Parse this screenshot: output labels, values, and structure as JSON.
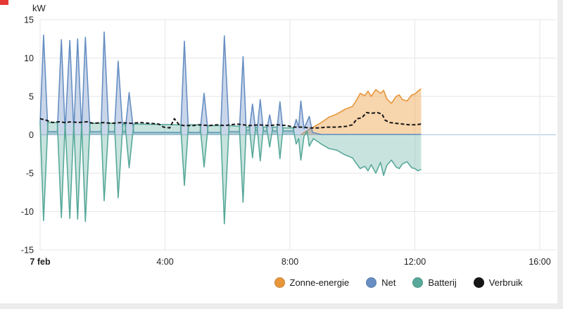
{
  "page": {
    "background_color": "#ececec",
    "card_color": "#ffffff",
    "corner_accent_color": "#e53935"
  },
  "chart_data": {
    "type": "area",
    "title": "",
    "ylabel": "kW",
    "xlabel": "",
    "x_unit": "hours_since_midnight",
    "date_label": "7 feb",
    "xlim": [
      0,
      16.52
    ],
    "ylim": [
      -15,
      15
    ],
    "yticks": [
      15,
      10,
      5,
      0,
      -5,
      -10,
      -15
    ],
    "xticks": [
      {
        "t": 0,
        "label": "7 feb",
        "bold": true
      },
      {
        "t": 4,
        "label": "4:00"
      },
      {
        "t": 8,
        "label": "8:00"
      },
      {
        "t": 12,
        "label": "12:00"
      },
      {
        "t": 16,
        "label": "16:00"
      }
    ],
    "grid": true,
    "legend_position": "bottom",
    "colors": {
      "grid_line": "#e6e6e6",
      "zero_line": "#a9c4dc",
      "axis_text": "#1f1f1f"
    },
    "series": [
      {
        "name": "Zonne-energie",
        "style": "area",
        "color": "#e8963c",
        "fill": "rgba(238,162,73,0.45)",
        "points": [
          [
            8.35,
            0
          ],
          [
            8.5,
            0.4
          ],
          [
            8.62,
            0.7
          ],
          [
            8.75,
            1.0
          ],
          [
            9.0,
            1.6
          ],
          [
            9.25,
            2.3
          ],
          [
            9.5,
            2.7
          ],
          [
            9.75,
            3.3
          ],
          [
            10.0,
            3.7
          ],
          [
            10.1,
            4.3
          ],
          [
            10.25,
            5.4
          ],
          [
            10.4,
            5.1
          ],
          [
            10.5,
            5.7
          ],
          [
            10.6,
            5.0
          ],
          [
            10.75,
            5.9
          ],
          [
            10.9,
            5.4
          ],
          [
            11.0,
            5.8
          ],
          [
            11.1,
            4.7
          ],
          [
            11.25,
            4.1
          ],
          [
            11.4,
            5.0
          ],
          [
            11.5,
            5.2
          ],
          [
            11.6,
            4.6
          ],
          [
            11.75,
            4.4
          ],
          [
            11.9,
            5.2
          ],
          [
            12.0,
            5.3
          ],
          [
            12.1,
            5.7
          ],
          [
            12.2,
            6.0
          ]
        ]
      },
      {
        "name": "Net",
        "style": "area",
        "color": "#678fc3",
        "fill": "rgba(113,148,199,0.38)",
        "points": [
          [
            0,
            1.5
          ],
          [
            0.11,
            13.0
          ],
          [
            0.25,
            0.4
          ],
          [
            0.55,
            0.4
          ],
          [
            0.68,
            12.4
          ],
          [
            0.8,
            0.5
          ],
          [
            0.95,
            12.3
          ],
          [
            1.08,
            0.5
          ],
          [
            1.2,
            12.5
          ],
          [
            1.33,
            0.5
          ],
          [
            1.45,
            12.7
          ],
          [
            1.6,
            0.4
          ],
          [
            1.95,
            0.4
          ],
          [
            2.05,
            13.4
          ],
          [
            2.2,
            0.4
          ],
          [
            2.38,
            0.4
          ],
          [
            2.5,
            9.6
          ],
          [
            2.65,
            0.4
          ],
          [
            2.72,
            0.35
          ],
          [
            2.85,
            5.5
          ],
          [
            3.0,
            0.3
          ],
          [
            4.5,
            0.3
          ],
          [
            4.62,
            12.2
          ],
          [
            4.75,
            0.3
          ],
          [
            5.12,
            0.3
          ],
          [
            5.25,
            5.4
          ],
          [
            5.38,
            0.3
          ],
          [
            5.78,
            0.3
          ],
          [
            5.9,
            12.9
          ],
          [
            6.05,
            0.4
          ],
          [
            6.38,
            0.4
          ],
          [
            6.5,
            10.2
          ],
          [
            6.6,
            0.6
          ],
          [
            6.7,
            0.6
          ],
          [
            6.8,
            4.0
          ],
          [
            6.9,
            0.6
          ],
          [
            6.95,
            0.6
          ],
          [
            7.05,
            4.6
          ],
          [
            7.15,
            0.5
          ],
          [
            7.25,
            0.5
          ],
          [
            7.35,
            2.6
          ],
          [
            7.45,
            0.5
          ],
          [
            7.58,
            0.5
          ],
          [
            7.68,
            4.3
          ],
          [
            7.78,
            0.5
          ],
          [
            8.1,
            0.5
          ],
          [
            8.2,
            2.0
          ],
          [
            8.28,
            1.0
          ],
          [
            8.35,
            4.4
          ],
          [
            8.45,
            0.8
          ],
          [
            8.62,
            2.4
          ],
          [
            8.72,
            0.3
          ],
          [
            9.0,
            0.05
          ],
          [
            12.2,
            0.05
          ]
        ]
      },
      {
        "name": "Batterij",
        "style": "area",
        "color": "#58a99a",
        "fill": "rgba(97,175,160,0.35)",
        "points": [
          [
            0,
            1.6
          ],
          [
            0.11,
            -11.2
          ],
          [
            0.25,
            1.6
          ],
          [
            0.55,
            1.6
          ],
          [
            0.68,
            -10.8
          ],
          [
            0.8,
            1.5
          ],
          [
            0.95,
            -10.9
          ],
          [
            1.08,
            1.5
          ],
          [
            1.2,
            -11.0
          ],
          [
            1.33,
            1.5
          ],
          [
            1.45,
            -11.3
          ],
          [
            1.6,
            1.5
          ],
          [
            1.95,
            1.5
          ],
          [
            2.05,
            -8.6
          ],
          [
            2.2,
            1.5
          ],
          [
            2.38,
            1.5
          ],
          [
            2.5,
            -8.2
          ],
          [
            2.65,
            1.4
          ],
          [
            2.72,
            1.4
          ],
          [
            2.85,
            -4.3
          ],
          [
            3.0,
            1.4
          ],
          [
            4.5,
            1.3
          ],
          [
            4.62,
            -6.6
          ],
          [
            4.75,
            1.3
          ],
          [
            5.12,
            1.3
          ],
          [
            5.25,
            -4.2
          ],
          [
            5.38,
            1.2
          ],
          [
            5.78,
            1.2
          ],
          [
            5.9,
            -11.6
          ],
          [
            6.05,
            1.2
          ],
          [
            6.38,
            1.1
          ],
          [
            6.5,
            -8.8
          ],
          [
            6.6,
            1.0
          ],
          [
            6.7,
            1.0
          ],
          [
            6.8,
            -3.0
          ],
          [
            6.9,
            1.0
          ],
          [
            6.95,
            1.0
          ],
          [
            7.05,
            -3.4
          ],
          [
            7.15,
            1.0
          ],
          [
            7.25,
            1.0
          ],
          [
            7.35,
            -1.6
          ],
          [
            7.45,
            1.0
          ],
          [
            7.58,
            1.0
          ],
          [
            7.68,
            -3.1
          ],
          [
            7.78,
            0.9
          ],
          [
            8.1,
            0.9
          ],
          [
            8.2,
            -1.2
          ],
          [
            8.28,
            -0.5
          ],
          [
            8.35,
            -3.3
          ],
          [
            8.45,
            -0.2
          ],
          [
            8.55,
            0.5
          ],
          [
            8.62,
            -1.5
          ],
          [
            8.75,
            -0.5
          ],
          [
            9.0,
            -1.2
          ],
          [
            9.25,
            -1.8
          ],
          [
            9.5,
            -2.0
          ],
          [
            9.75,
            -2.6
          ],
          [
            10.0,
            -3.0
          ],
          [
            10.1,
            -3.6
          ],
          [
            10.25,
            -4.4
          ],
          [
            10.4,
            -4.1
          ],
          [
            10.5,
            -4.7
          ],
          [
            10.6,
            -3.9
          ],
          [
            10.75,
            -5.0
          ],
          [
            10.9,
            -3.6
          ],
          [
            11.0,
            -5.3
          ],
          [
            11.1,
            -4.0
          ],
          [
            11.25,
            -3.3
          ],
          [
            11.4,
            -4.2
          ],
          [
            11.5,
            -4.4
          ],
          [
            11.6,
            -3.8
          ],
          [
            11.75,
            -3.5
          ],
          [
            11.9,
            -4.3
          ],
          [
            12.0,
            -4.4
          ],
          [
            12.1,
            -4.7
          ],
          [
            12.2,
            -4.5
          ]
        ]
      },
      {
        "name": "Verbruik",
        "style": "dashed-line",
        "color": "#161616",
        "fill": "none",
        "points": [
          [
            0,
            2.1
          ],
          [
            0.2,
            1.9
          ],
          [
            0.4,
            1.6
          ],
          [
            0.6,
            1.7
          ],
          [
            0.8,
            1.6
          ],
          [
            1.0,
            1.7
          ],
          [
            1.2,
            1.6
          ],
          [
            1.5,
            1.7
          ],
          [
            1.7,
            1.5
          ],
          [
            2.0,
            1.6
          ],
          [
            2.3,
            1.5
          ],
          [
            2.6,
            1.6
          ],
          [
            2.9,
            1.5
          ],
          [
            3.2,
            1.6
          ],
          [
            3.5,
            1.5
          ],
          [
            3.8,
            1.4
          ],
          [
            3.95,
            1.0
          ],
          [
            4.15,
            0.9
          ],
          [
            4.3,
            2.1
          ],
          [
            4.45,
            1.3
          ],
          [
            4.6,
            1.2
          ],
          [
            4.9,
            1.2
          ],
          [
            5.1,
            1.3
          ],
          [
            5.4,
            1.2
          ],
          [
            5.7,
            1.3
          ],
          [
            5.9,
            1.2
          ],
          [
            6.1,
            1.3
          ],
          [
            6.3,
            1.4
          ],
          [
            6.5,
            1.3
          ],
          [
            6.7,
            1.2
          ],
          [
            7.0,
            1.3
          ],
          [
            7.3,
            1.2
          ],
          [
            7.6,
            1.3
          ],
          [
            7.9,
            1.2
          ],
          [
            8.1,
            1.0
          ],
          [
            8.4,
            1.0
          ],
          [
            8.6,
            0.9
          ],
          [
            8.9,
            0.9
          ],
          [
            9.2,
            1.0
          ],
          [
            9.5,
            1.0
          ],
          [
            9.8,
            1.1
          ],
          [
            10.0,
            1.3
          ],
          [
            10.15,
            2.1
          ],
          [
            10.3,
            2.2
          ],
          [
            10.45,
            2.9
          ],
          [
            10.6,
            2.8
          ],
          [
            10.8,
            2.9
          ],
          [
            10.95,
            2.7
          ],
          [
            11.05,
            1.9
          ],
          [
            11.2,
            1.6
          ],
          [
            11.4,
            1.5
          ],
          [
            11.6,
            1.4
          ],
          [
            11.8,
            1.3
          ],
          [
            12.0,
            1.3
          ],
          [
            12.2,
            1.4
          ]
        ]
      }
    ]
  }
}
